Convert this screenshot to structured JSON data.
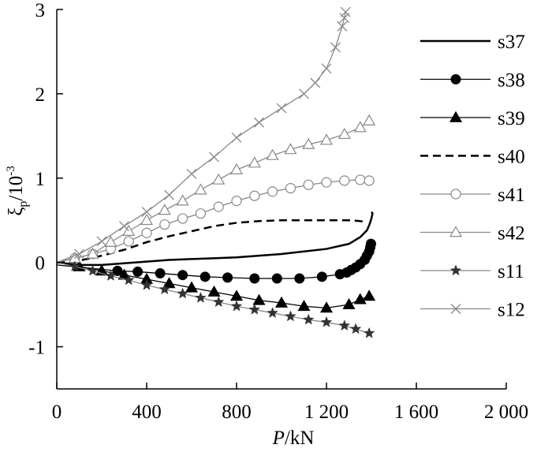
{
  "chart_data": {
    "type": "line",
    "title": "",
    "xlabel_italic": "P",
    "xlabel_rest": "/kN",
    "ylabel_main": "ξ",
    "ylabel_sub": "p",
    "ylabel_unit": "/10",
    "ylabel_exp": "-3",
    "xlim": [
      0,
      2000
    ],
    "ylim": [
      -1.5,
      3
    ],
    "x_ticks": [
      0,
      400,
      800,
      1200,
      1600,
      2000
    ],
    "x_tick_labels": [
      "0",
      "400",
      "800",
      "1 200",
      "1 600",
      "2 000"
    ],
    "y_ticks": [
      -1,
      0,
      1,
      2,
      3
    ],
    "y_tick_labels": [
      "-1",
      "0",
      "1",
      "2",
      "3"
    ],
    "grid": false,
    "legend_position": "right",
    "series": [
      {
        "name": "s37",
        "style": "solid",
        "color": "#000000",
        "marker": "none",
        "x": [
          0,
          100,
          200,
          300,
          400,
          500,
          600,
          700,
          800,
          900,
          1000,
          1100,
          1200,
          1300,
          1350,
          1380,
          1390,
          1395,
          1400,
          1405,
          1400
        ],
        "y": [
          0,
          -0.03,
          -0.03,
          -0.01,
          0.01,
          0.03,
          0.04,
          0.05,
          0.06,
          0.08,
          0.1,
          0.13,
          0.16,
          0.22,
          0.3,
          0.38,
          0.44,
          0.48,
          0.52,
          0.58,
          0.6
        ]
      },
      {
        "name": "s38",
        "style": "solid",
        "color": "#000000",
        "marker": "circle-filled",
        "x": [
          0,
          270,
          360,
          460,
          560,
          660,
          760,
          880,
          980,
          1080,
          1180,
          1260,
          1290,
          1310,
          1330,
          1350,
          1370,
          1380,
          1390,
          1395,
          1398
        ],
        "y": [
          -0.03,
          -0.1,
          -0.11,
          -0.13,
          -0.15,
          -0.17,
          -0.18,
          -0.19,
          -0.19,
          -0.19,
          -0.17,
          -0.14,
          -0.12,
          -0.09,
          -0.06,
          -0.02,
          0.03,
          0.08,
          0.13,
          0.18,
          0.22
        ]
      },
      {
        "name": "s39",
        "style": "solid",
        "color": "#000000",
        "marker": "triangle-filled",
        "x": [
          0,
          100,
          200,
          300,
          400,
          500,
          600,
          700,
          800,
          900,
          1000,
          1100,
          1200,
          1300,
          1350,
          1390
        ],
        "y": [
          0,
          -0.05,
          -0.1,
          -0.15,
          -0.2,
          -0.25,
          -0.3,
          -0.35,
          -0.4,
          -0.45,
          -0.48,
          -0.52,
          -0.54,
          -0.5,
          -0.44,
          -0.4
        ]
      },
      {
        "name": "s40",
        "style": "dashed",
        "color": "#000000",
        "marker": "none",
        "x": [
          0,
          100,
          200,
          300,
          400,
          500,
          600,
          700,
          800,
          900,
          1000,
          1100,
          1200,
          1300,
          1350,
          1370,
          1380
        ],
        "y": [
          0,
          0.02,
          0.08,
          0.15,
          0.24,
          0.31,
          0.37,
          0.43,
          0.47,
          0.49,
          0.5,
          0.5,
          0.5,
          0.5,
          0.49,
          0.48,
          0.47
        ]
      },
      {
        "name": "s41",
        "style": "solid",
        "color": "#888888",
        "marker": "circle-open",
        "x": [
          0,
          80,
          160,
          240,
          320,
          400,
          480,
          560,
          640,
          720,
          800,
          880,
          960,
          1040,
          1120,
          1200,
          1280,
          1350,
          1390
        ],
        "y": [
          0,
          0.05,
          0.1,
          0.16,
          0.25,
          0.35,
          0.45,
          0.52,
          0.58,
          0.66,
          0.73,
          0.79,
          0.84,
          0.88,
          0.92,
          0.95,
          0.97,
          0.98,
          0.97
        ]
      },
      {
        "name": "s42",
        "style": "solid",
        "color": "#888888",
        "marker": "triangle-open",
        "x": [
          0,
          80,
          160,
          240,
          320,
          400,
          480,
          560,
          640,
          720,
          800,
          880,
          960,
          1040,
          1120,
          1200,
          1280,
          1350,
          1390
        ],
        "y": [
          0,
          0.05,
          0.1,
          0.24,
          0.37,
          0.5,
          0.62,
          0.73,
          0.86,
          0.98,
          1.1,
          1.18,
          1.27,
          1.34,
          1.4,
          1.45,
          1.52,
          1.6,
          1.68
        ]
      },
      {
        "name": "s11",
        "style": "solid",
        "color": "#888888",
        "marker": "star-filled",
        "x": [
          0,
          80,
          160,
          240,
          320,
          400,
          480,
          560,
          640,
          720,
          800,
          880,
          960,
          1040,
          1120,
          1200,
          1280,
          1330,
          1390
        ],
        "y": [
          0,
          -0.05,
          -0.1,
          -0.16,
          -0.21,
          -0.27,
          -0.32,
          -0.37,
          -0.42,
          -0.47,
          -0.52,
          -0.56,
          -0.6,
          -0.64,
          -0.68,
          -0.71,
          -0.75,
          -0.79,
          -0.84
        ]
      },
      {
        "name": "s12",
        "style": "solid",
        "color": "#888888",
        "marker": "x",
        "x": [
          0,
          100,
          200,
          300,
          400,
          500,
          600,
          700,
          800,
          900,
          1000,
          1100,
          1150,
          1200,
          1240,
          1270,
          1280,
          1285
        ],
        "y": [
          0,
          0.1,
          0.25,
          0.43,
          0.6,
          0.8,
          1.05,
          1.25,
          1.48,
          1.66,
          1.83,
          2.0,
          2.13,
          2.3,
          2.55,
          2.8,
          2.9,
          2.97
        ]
      }
    ]
  }
}
